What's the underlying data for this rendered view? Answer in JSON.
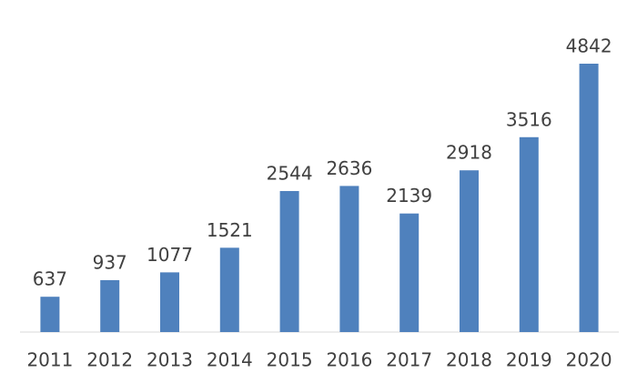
{
  "chart_data": {
    "type": "bar",
    "categories": [
      "2011",
      "2012",
      "2013",
      "2014",
      "2015",
      "2016",
      "2017",
      "2018",
      "2019",
      "2020"
    ],
    "values": [
      637,
      937,
      1077,
      1521,
      2544,
      2636,
      2139,
      2918,
      3516,
      4842
    ],
    "color": "#4f81bd"
  }
}
